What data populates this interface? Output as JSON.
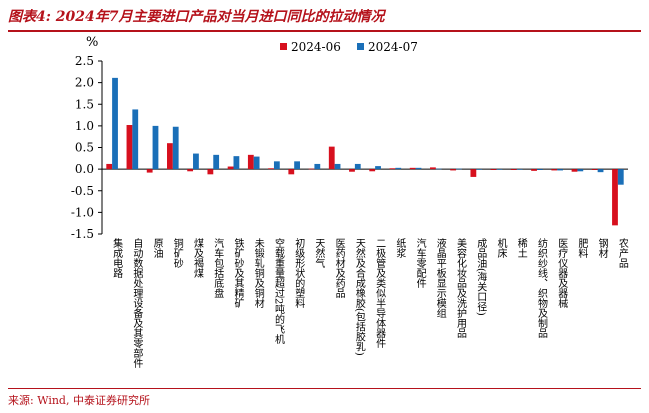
{
  "header": {
    "title": "图表4: 2024年7月主要进口产品对当月进口同比的拉动情况"
  },
  "footer": {
    "source": "来源: Wind, 中泰证券研究所"
  },
  "colors": {
    "series_1": "#d7101e",
    "series_2": "#1a6fb8",
    "accent": "#b5121b"
  },
  "chart_data": {
    "type": "bar",
    "ylabel": "%",
    "ylim": [
      -1.5,
      2.5
    ],
    "yticks": [
      -1.5,
      -1.0,
      -0.5,
      0.0,
      0.5,
      1.0,
      1.5,
      2.0,
      2.5
    ],
    "legend_position": "top-center",
    "grid": false,
    "categories": [
      "集成电路",
      "自动数据处理设备及其零部件",
      "原油",
      "铜矿砂",
      "煤及褐煤",
      "汽车包括底盘",
      "铁矿砂及其精矿",
      "未锻轧铜及铜材",
      "空载重量超过2吨的飞机",
      "初级形状的塑料",
      "天然气",
      "医药材及药品",
      "天然及合成橡胶(包括胶乳)",
      "二极管及类似半导体器件",
      "纸浆",
      "汽车零配件",
      "液晶平板显示模组",
      "美容化妆品及洗护用品",
      "成品油(海关口径)",
      "机床",
      "稀土",
      "纺织纱线、织物及制品",
      "医疗仪器及器械",
      "肥料",
      "钢材",
      "农产品"
    ],
    "series": [
      {
        "name": "2024-06",
        "values": [
          0.12,
          1.02,
          -0.08,
          0.6,
          -0.05,
          -0.12,
          0.06,
          0.33,
          0.02,
          -0.12,
          0.01,
          0.52,
          -0.06,
          -0.05,
          0.02,
          0.03,
          0.04,
          -0.03,
          -0.18,
          -0.02,
          -0.02,
          -0.04,
          -0.03,
          -0.06,
          -0.02,
          -1.3
        ]
      },
      {
        "name": "2024-07",
        "values": [
          2.11,
          1.38,
          1.0,
          0.98,
          0.36,
          0.33,
          0.3,
          0.29,
          0.18,
          0.18,
          0.12,
          0.12,
          0.12,
          0.07,
          0.03,
          0.03,
          0.01,
          0.01,
          0.0,
          0.0,
          -0.01,
          -0.02,
          -0.03,
          -0.05,
          -0.07,
          -0.36
        ]
      }
    ]
  }
}
